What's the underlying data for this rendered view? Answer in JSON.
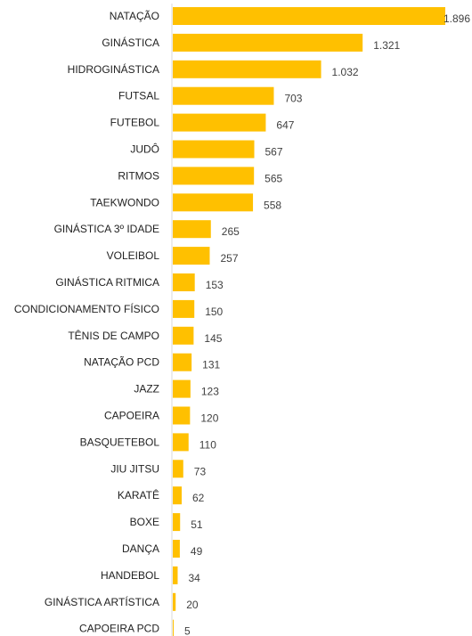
{
  "chart_data": {
    "type": "bar",
    "orientation": "horizontal",
    "title": "",
    "xlabel": "",
    "ylabel": "",
    "bar_color": "#FFC000",
    "axis_color": "#D9D9D9",
    "categories": [
      "NATAÇÃO",
      "GINÁSTICA",
      "HIDROGINÁSTICA",
      "FUTSAL",
      "FUTEBOL",
      "JUDÔ",
      "RITMOS",
      "TAEKWONDO",
      "GINÁSTICA 3º IDADE",
      "VOLEIBOL",
      "GINÁSTICA RITMICA",
      "CONDICIONAMENTO FÍSICO",
      "TÊNIS DE CAMPO",
      "NATAÇÃO PCD",
      "JAZZ",
      "CAPOEIRA",
      "BASQUETEBOL",
      "JIU JITSU",
      "KARATÊ",
      "BOXE",
      "DANÇA",
      "HANDEBOL",
      "GINÁSTICA ARTÍSTICA",
      "CAPOEIRA PCD"
    ],
    "values": [
      1896,
      1321,
      1032,
      703,
      647,
      567,
      565,
      558,
      265,
      257,
      153,
      150,
      145,
      131,
      123,
      120,
      110,
      73,
      62,
      51,
      49,
      34,
      20,
      5
    ],
    "value_labels": [
      "1.896",
      "1.321",
      "1.032",
      "703",
      "647",
      "567",
      "565",
      "558",
      "265",
      "257",
      "153",
      "150",
      "145",
      "131",
      "123",
      "120",
      "110",
      "73",
      "62",
      "51",
      "49",
      "34",
      "20",
      "5"
    ],
    "xlim": [
      0,
      1896
    ],
    "grid": false,
    "legend": "none"
  }
}
